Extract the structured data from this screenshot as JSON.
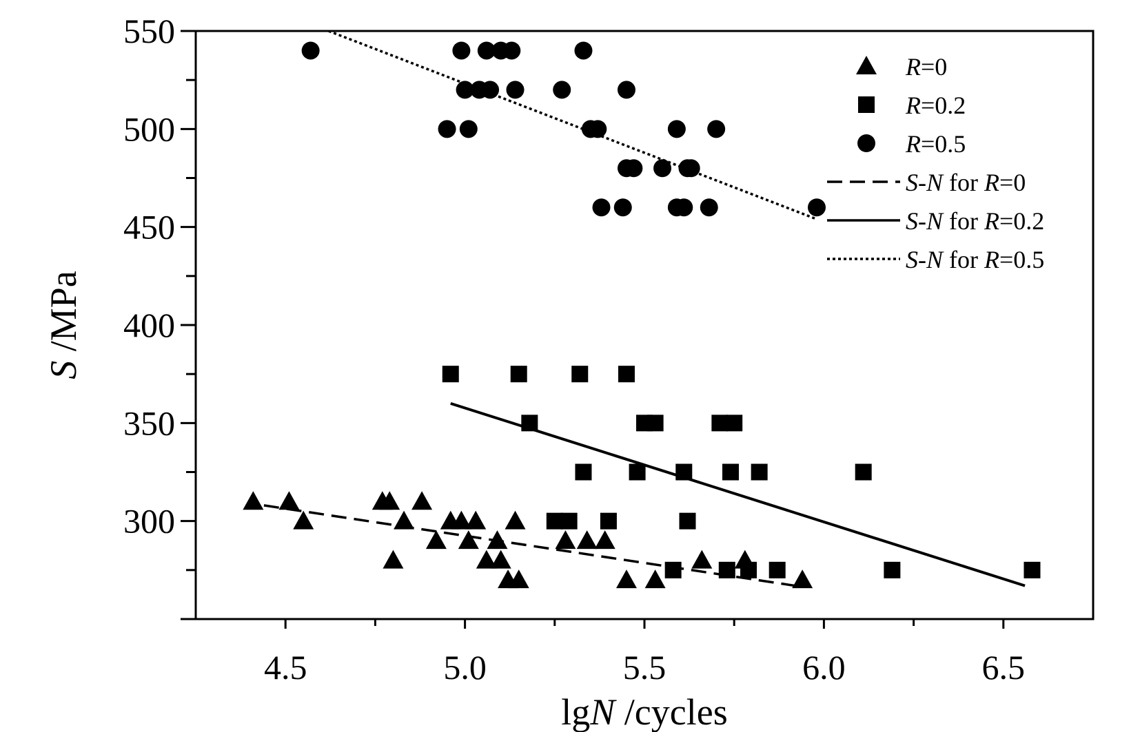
{
  "chart_data": {
    "type": "scatter",
    "xlabel_parts": [
      {
        "text": "lg",
        "italic": false
      },
      {
        "text": "N",
        "italic": true
      },
      {
        "text": " /cycles",
        "italic": false
      }
    ],
    "ylabel_parts": [
      {
        "text": "S",
        "italic": true
      },
      {
        "text": " /MPa",
        "italic": false
      }
    ],
    "xlim": [
      4.25,
      6.75
    ],
    "ylim": [
      250,
      550
    ],
    "xticks": [
      "4.5",
      "5.0",
      "5.5",
      "6.0",
      "6.5"
    ],
    "yticks": [
      "300",
      "350",
      "400",
      "450",
      "500",
      "550"
    ],
    "grid": false,
    "legend_position": "top-right",
    "series": [
      {
        "name_parts": [
          {
            "text": "R",
            "italic": true
          },
          {
            "text": "=0",
            "italic": false
          }
        ],
        "marker": "triangle",
        "points": [
          [
            4.41,
            310
          ],
          [
            4.51,
            310
          ],
          [
            4.55,
            300
          ],
          [
            4.77,
            310
          ],
          [
            4.79,
            310
          ],
          [
            4.8,
            280
          ],
          [
            4.83,
            300
          ],
          [
            4.88,
            310
          ],
          [
            4.92,
            290
          ],
          [
            4.96,
            300
          ],
          [
            4.99,
            300
          ],
          [
            5.01,
            290
          ],
          [
            5.03,
            300
          ],
          [
            5.06,
            280
          ],
          [
            5.09,
            290
          ],
          [
            5.1,
            280
          ],
          [
            5.12,
            270
          ],
          [
            5.14,
            300
          ],
          [
            5.15,
            270
          ],
          [
            5.28,
            290
          ],
          [
            5.34,
            290
          ],
          [
            5.39,
            290
          ],
          [
            5.45,
            270
          ],
          [
            5.53,
            270
          ],
          [
            5.66,
            280
          ],
          [
            5.78,
            280
          ],
          [
            5.94,
            270
          ]
        ]
      },
      {
        "name_parts": [
          {
            "text": "R",
            "italic": true
          },
          {
            "text": "=0.2",
            "italic": false
          }
        ],
        "marker": "square",
        "points": [
          [
            4.96,
            375
          ],
          [
            5.15,
            375
          ],
          [
            5.32,
            375
          ],
          [
            5.45,
            375
          ],
          [
            5.18,
            350
          ],
          [
            5.5,
            350
          ],
          [
            5.53,
            350
          ],
          [
            5.71,
            350
          ],
          [
            5.75,
            350
          ],
          [
            5.33,
            325
          ],
          [
            5.48,
            325
          ],
          [
            5.61,
            325
          ],
          [
            5.74,
            325
          ],
          [
            5.82,
            325
          ],
          [
            6.11,
            325
          ],
          [
            5.25,
            300
          ],
          [
            5.29,
            300
          ],
          [
            5.4,
            300
          ],
          [
            5.62,
            300
          ],
          [
            5.58,
            275
          ],
          [
            5.73,
            275
          ],
          [
            5.79,
            275
          ],
          [
            5.87,
            275
          ],
          [
            6.19,
            275
          ],
          [
            6.58,
            275
          ]
        ]
      },
      {
        "name_parts": [
          {
            "text": "R",
            "italic": true
          },
          {
            "text": "=0.5",
            "italic": false
          }
        ],
        "marker": "circle",
        "points": [
          [
            4.57,
            540
          ],
          [
            4.99,
            540
          ],
          [
            5.06,
            540
          ],
          [
            5.1,
            540
          ],
          [
            5.13,
            540
          ],
          [
            5.33,
            540
          ],
          [
            5.0,
            520
          ],
          [
            5.04,
            520
          ],
          [
            5.07,
            520
          ],
          [
            5.14,
            520
          ],
          [
            5.27,
            520
          ],
          [
            5.45,
            520
          ],
          [
            4.95,
            500
          ],
          [
            5.01,
            500
          ],
          [
            5.35,
            500
          ],
          [
            5.37,
            500
          ],
          [
            5.59,
            500
          ],
          [
            5.7,
            500
          ],
          [
            5.45,
            480
          ],
          [
            5.47,
            480
          ],
          [
            5.55,
            480
          ],
          [
            5.62,
            480
          ],
          [
            5.63,
            480
          ],
          [
            5.38,
            460
          ],
          [
            5.44,
            460
          ],
          [
            5.59,
            460
          ],
          [
            5.61,
            460
          ],
          [
            5.68,
            460
          ],
          [
            5.98,
            460
          ]
        ]
      }
    ],
    "fit_lines": [
      {
        "name_parts": [
          {
            "text": "S",
            "italic": true
          },
          {
            "text": "-",
            "italic": false
          },
          {
            "text": "N",
            "italic": true
          },
          {
            "text": " for ",
            "italic": false
          },
          {
            "text": "R",
            "italic": true
          },
          {
            "text": "=0",
            "italic": false
          }
        ],
        "style": "dashed",
        "points": [
          [
            4.44,
            308
          ],
          [
            5.92,
            267
          ]
        ]
      },
      {
        "name_parts": [
          {
            "text": "S",
            "italic": true
          },
          {
            "text": "-",
            "italic": false
          },
          {
            "text": "N",
            "italic": true
          },
          {
            "text": " for ",
            "italic": false
          },
          {
            "text": "R",
            "italic": true
          },
          {
            "text": "=0.2",
            "italic": false
          }
        ],
        "style": "solid",
        "points": [
          [
            4.96,
            360
          ],
          [
            6.56,
            267
          ]
        ]
      },
      {
        "name_parts": [
          {
            "text": "S",
            "italic": true
          },
          {
            "text": "-",
            "italic": false
          },
          {
            "text": "N",
            "italic": true
          },
          {
            "text": " for ",
            "italic": false
          },
          {
            "text": "R",
            "italic": true
          },
          {
            "text": "=0.5",
            "italic": false
          }
        ],
        "style": "dotted",
        "points": [
          [
            4.62,
            550
          ],
          [
            5.98,
            454
          ]
        ]
      }
    ],
    "colors": {
      "marker": "#000000",
      "axis": "#000000",
      "background": "#ffffff"
    }
  }
}
